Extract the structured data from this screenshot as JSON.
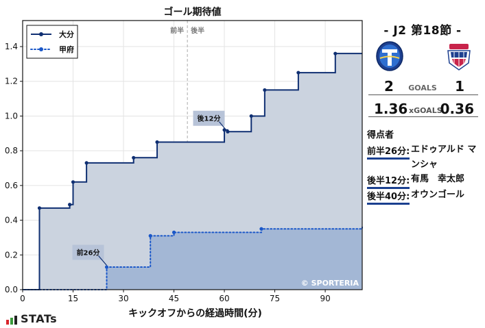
{
  "chart_data": {
    "type": "line",
    "title": "ゴール期待値",
    "xlabel": "キックオフからの経過時間(分)",
    "ylabel": "",
    "xlim": [
      0,
      101
    ],
    "ylim": [
      0,
      1.55
    ],
    "xticks": [
      "0",
      "15",
      "30",
      "45",
      "60",
      "75",
      "90"
    ],
    "yticks": [
      "0.0",
      "0.2",
      "0.4",
      "0.6",
      "0.8",
      "1.0",
      "1.2",
      "1.4"
    ],
    "grid": true,
    "legend_position": "top-left",
    "half_labels": {
      "first": "前半",
      "second": "後半",
      "at": 49
    },
    "series": [
      {
        "name": "大分",
        "style": "solid",
        "color": "#0f2f72",
        "fill": "#cbd3df",
        "x": [
          0,
          5,
          14,
          15,
          19,
          33,
          40,
          60,
          61,
          68,
          72,
          82,
          93,
          101
        ],
        "y": [
          0,
          0.47,
          0.49,
          0.62,
          0.73,
          0.76,
          0.85,
          0.92,
          0.91,
          1.0,
          1.15,
          1.25,
          1.36,
          1.36
        ]
      },
      {
        "name": "甲府",
        "style": "dotted",
        "color": "#1a57c8",
        "fill": "#9cb2d4",
        "x": [
          0,
          25,
          38,
          45,
          71,
          101
        ],
        "y": [
          0,
          0.13,
          0.31,
          0.33,
          0.35,
          0.36
        ]
      }
    ],
    "annotations": [
      {
        "text": "後12分",
        "x": 60.5,
        "y": 0.92,
        "series": 0
      },
      {
        "text": "前26分",
        "x": 25,
        "y": 0.14,
        "series": 1
      }
    ],
    "watermark": "© SPORTERIA"
  },
  "match": {
    "title": "- J2 第18節 -",
    "home_goals": "2",
    "away_goals": "1",
    "goals_label": "GOALS",
    "home_xg": "1.36",
    "away_xg": "0.36",
    "xg_label": "xGOALS"
  },
  "scorers": {
    "title": "得点者",
    "goals": [
      {
        "time": "前半26分:",
        "player": "エドゥアルド マンシャ"
      },
      {
        "time": "後半12分:",
        "player": "有馬　幸太郎"
      },
      {
        "time": "後半40分:",
        "player": "オウンゴール"
      }
    ]
  },
  "brand": {
    "name": "STATs"
  },
  "colors": {
    "home": "#0f2f72",
    "away": "#1a57c8",
    "accent": "#1a3f8f"
  }
}
